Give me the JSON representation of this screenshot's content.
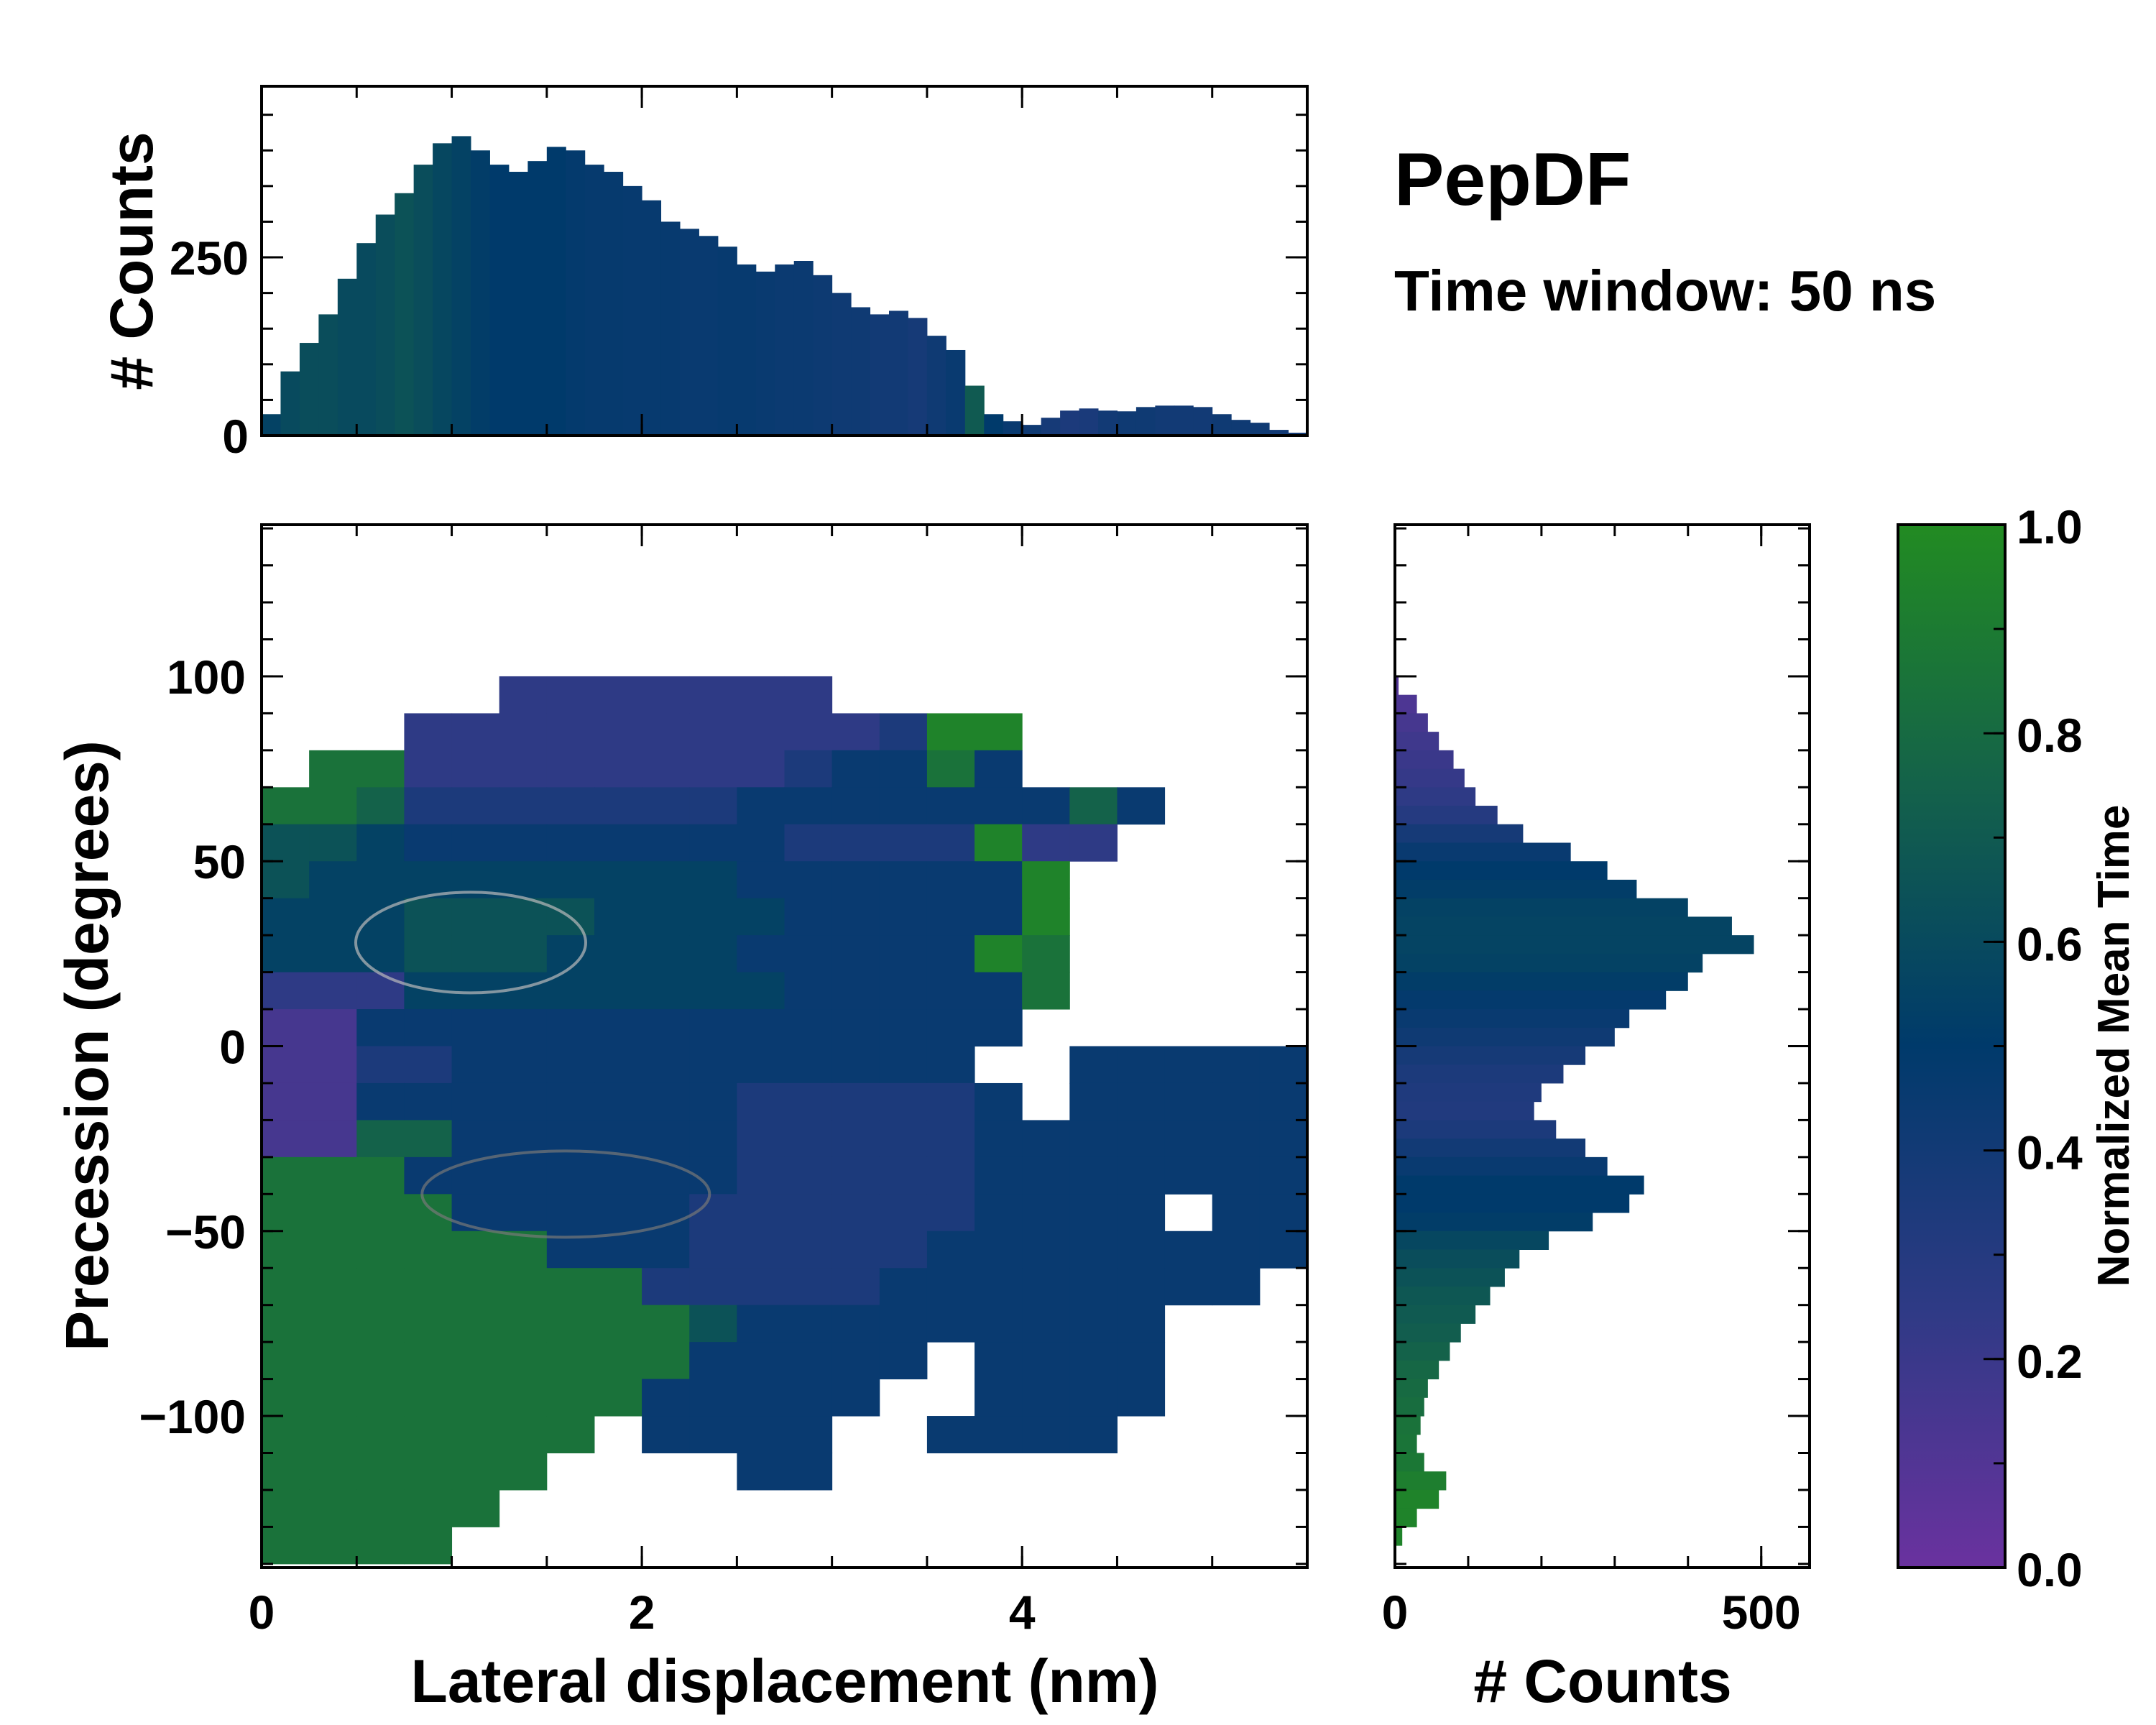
{
  "title": "PepDF",
  "subtitle": "Time window: 50 ns",
  "colormap": {
    "stops": [
      {
        "v": 0.0,
        "color": "#6a329f"
      },
      {
        "v": 0.25,
        "color": "#2e3a85"
      },
      {
        "v": 0.5,
        "color": "#003a6b"
      },
      {
        "v": 0.75,
        "color": "#14624a"
      },
      {
        "v": 1.0,
        "color": "#228b22"
      }
    ],
    "label": "Normalized Mean Time",
    "ticks": [
      0.0,
      0.2,
      0.4,
      0.6,
      0.8,
      1.0
    ],
    "tick_labels": [
      "0.0",
      "0.2",
      "0.4",
      "0.6",
      "0.8",
      "1.0"
    ]
  },
  "chart_data": [
    {
      "type": "heatmap",
      "name": "main",
      "xlabel": "Lateral displacement (nm)",
      "ylabel": "Precession (degrees)",
      "xlim": [
        0,
        5.5
      ],
      "ylim": [
        -141,
        141
      ],
      "xticks": [
        0,
        2,
        4
      ],
      "xtick_labels": [
        "0",
        "2",
        "4"
      ],
      "yticks": [
        -100,
        -50,
        0,
        50,
        100
      ],
      "ytick_labels": [
        "−100",
        "−50",
        "0",
        "50",
        "100"
      ],
      "grid": {
        "x_start": 0,
        "x_step": 0.25,
        "y_top": 100,
        "y_step": 10,
        "encoding": "digit d = normalized mean time (d+0.5)/10, '.' = empty",
        "rows": [
          ".....2222222..........",
          "...2222222222399......",
          ".882222222234484......",
          "8873333333444444474...",
          "665444444443333922....",
          "65555555554444449.....",
          "55566665555444449.....",
          "55566655554444498.....",
          "22255555555444448.....",
          "1144444444444444......",
          "113344444444444..44444",
          "1144444444333334.44444",
          "1177444444333334444444",
          "8884444444333334444444",
          "8888444443333334444.44",
          "8888884443333344444444",
          "888888883333344444444.",
          "8888888886444444444...",
          "88888888844444.4444...",
          "8888888844444..4444...",
          "8888888.4444..4444....",
          "888888....44..........",
          "88888.................",
          "8888.................."
        ]
      }
    },
    {
      "type": "bar",
      "name": "top-histogram",
      "ylabel": "# Counts",
      "ylim": [
        0,
        490
      ],
      "yticks": [
        0,
        250
      ],
      "ytick_labels": [
        "0",
        "250"
      ],
      "bin_start": 0,
      "bin_width": 0.1,
      "values": [
        30,
        90,
        130,
        170,
        220,
        270,
        310,
        340,
        380,
        410,
        420,
        400,
        380,
        370,
        385,
        405,
        400,
        380,
        370,
        350,
        330,
        300,
        290,
        280,
        265,
        240,
        230,
        240,
        245,
        225,
        200,
        180,
        170,
        175,
        165,
        140,
        120,
        70,
        30,
        20,
        15,
        25,
        35,
        38,
        35,
        34,
        40,
        42,
        42,
        40,
        30,
        22,
        18,
        8,
        4
      ],
      "mean_time": [
        0.55,
        0.6,
        0.62,
        0.62,
        0.6,
        0.6,
        0.62,
        0.65,
        0.62,
        0.58,
        0.55,
        0.52,
        0.5,
        0.5,
        0.5,
        0.5,
        0.48,
        0.47,
        0.47,
        0.46,
        0.46,
        0.46,
        0.45,
        0.45,
        0.46,
        0.46,
        0.45,
        0.44,
        0.44,
        0.43,
        0.42,
        0.42,
        0.4,
        0.4,
        0.38,
        0.42,
        0.45,
        0.7,
        0.5,
        0.45,
        0.42,
        0.38,
        0.35,
        0.36,
        0.4,
        0.42,
        0.42,
        0.4,
        0.4,
        0.4,
        0.42,
        0.42,
        0.42,
        0.4,
        0.4
      ]
    },
    {
      "type": "barh",
      "name": "right-histogram",
      "xlabel": "# Counts",
      "xlim": [
        0,
        566
      ],
      "xticks": [
        0,
        500
      ],
      "xtick_labels": [
        "0",
        "500"
      ],
      "bin_top": 100,
      "bin_width": 5,
      "values": [
        5,
        30,
        45,
        60,
        80,
        95,
        110,
        140,
        175,
        240,
        290,
        330,
        400,
        460,
        490,
        420,
        400,
        370,
        320,
        300,
        260,
        230,
        200,
        190,
        220,
        260,
        290,
        340,
        320,
        270,
        210,
        170,
        150,
        130,
        110,
        90,
        75,
        60,
        45,
        40,
        35,
        30,
        40,
        70,
        60,
        30,
        10,
        2
      ],
      "mean_time": [
        0.1,
        0.12,
        0.15,
        0.18,
        0.2,
        0.22,
        0.25,
        0.3,
        0.38,
        0.45,
        0.5,
        0.52,
        0.55,
        0.56,
        0.56,
        0.55,
        0.52,
        0.48,
        0.45,
        0.42,
        0.38,
        0.35,
        0.33,
        0.32,
        0.35,
        0.4,
        0.45,
        0.5,
        0.5,
        0.52,
        0.58,
        0.62,
        0.65,
        0.68,
        0.7,
        0.72,
        0.75,
        0.78,
        0.8,
        0.82,
        0.85,
        0.86,
        0.88,
        0.92,
        0.95,
        0.95,
        0.95,
        0.95
      ]
    }
  ]
}
